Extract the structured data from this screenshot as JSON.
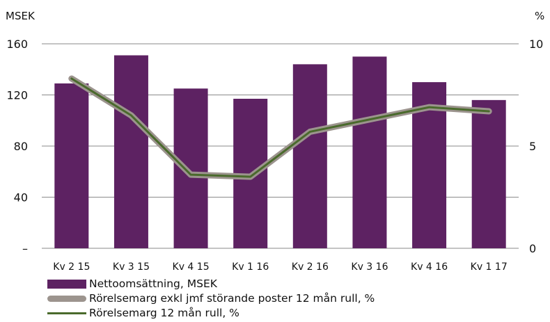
{
  "chart_data": {
    "type": "bar",
    "categories": [
      "Kv 2 15",
      "Kv 3 15",
      "Kv 4 15",
      "Kv 1 16",
      "Kv 2 16",
      "Kv 3 16",
      "Kv 4 16",
      "Kv 1 17"
    ],
    "left_axis_unit": "MSEK",
    "right_axis_unit": "%",
    "left_ylim": [
      0,
      160
    ],
    "right_ylim": [
      0,
      10
    ],
    "left_ticks": [
      "–",
      "40",
      "80",
      "120",
      "160"
    ],
    "left_tick_values": [
      0,
      40,
      80,
      120,
      160
    ],
    "right_ticks": [
      "0",
      "5",
      "10"
    ],
    "right_tick_values": [
      0,
      5,
      10
    ],
    "grid": true,
    "legend_position": "bottom-left",
    "series": [
      {
        "name": "Nettoomsättning, MSEK",
        "kind": "bar",
        "axis": "left",
        "color": "#5d2262",
        "values": [
          129,
          151,
          125,
          117,
          144,
          150,
          130,
          116
        ]
      },
      {
        "name": "Rörelsemarg exkl jmf störande poster 12 mån rull, %",
        "kind": "line",
        "axis": "right",
        "color": "#9c948e",
        "values": [
          8.3,
          6.5,
          3.6,
          3.5,
          5.7,
          6.3,
          6.9,
          6.7
        ]
      },
      {
        "name": "Rörelsemarg 12 mån rull, %",
        "kind": "line",
        "axis": "right",
        "color": "#4a6a2c",
        "values": [
          8.3,
          6.5,
          3.6,
          3.5,
          5.7,
          6.3,
          6.9,
          6.7
        ]
      }
    ]
  }
}
